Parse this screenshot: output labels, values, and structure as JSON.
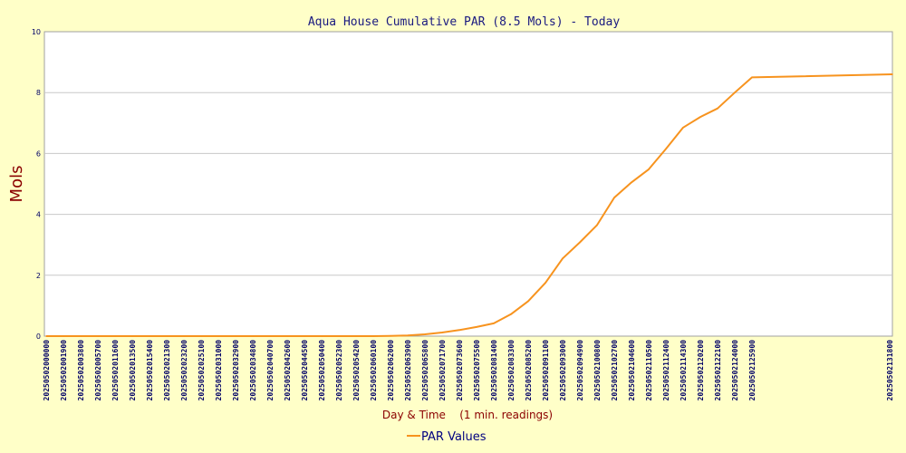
{
  "colors": {
    "background": "#ffffc8",
    "plot_background": "#ffffff",
    "grid": "#c8c8c8",
    "series": "#f7931e"
  },
  "chart_data": {
    "type": "line",
    "title": "Aqua House Cumulative PAR (8.5 Mols)  - Today",
    "xlabel": "Day & Time    (1 min. readings)",
    "ylabel": "Mols",
    "ylim": [
      0,
      10
    ],
    "yticks": [
      "0",
      "2",
      "4",
      "6",
      "8",
      "10"
    ],
    "grid": true,
    "legend": "bottom-center",
    "x_categories": [
      "20250502000000",
      "20250502001900",
      "20250502003800",
      "20250502005700",
      "20250502011600",
      "20250502013500",
      "20250502015400",
      "20250502021300",
      "20250502023200",
      "20250502025100",
      "20250502031000",
      "20250502032900",
      "20250502034800",
      "20250502040700",
      "20250502042600",
      "20250502044500",
      "20250502050400",
      "20250502052300",
      "20250502054200",
      "20250502060100",
      "20250502062000",
      "20250502063900",
      "20250502065800",
      "20250502071700",
      "20250502073600",
      "20250502075500",
      "20250502081400",
      "20250502083300",
      "20250502085200",
      "20250502091100",
      "20250502093000",
      "20250502094900",
      "20250502100800",
      "20250502102700",
      "20250502104600",
      "20250502110500",
      "20250502112400",
      "20250502114300",
      "20250502120200",
      "20250502122100",
      "20250502124000",
      "20250502125900",
      "20250502131800"
    ],
    "series": [
      {
        "name": "PAR Values",
        "values": [
          0,
          0,
          0,
          0,
          0,
          0,
          0,
          0,
          0,
          0,
          0,
          0,
          0,
          0,
          0,
          0,
          0,
          0,
          0,
          0,
          0.01,
          0.02,
          0.06,
          0.12,
          0.2,
          0.3,
          0.42,
          0.72,
          1.15,
          1.75,
          2.55,
          3.08,
          3.65,
          4.55,
          5.05,
          5.48,
          6.15,
          6.85,
          7.2,
          7.48,
          8.0,
          8.5,
          8.6
        ]
      }
    ]
  }
}
